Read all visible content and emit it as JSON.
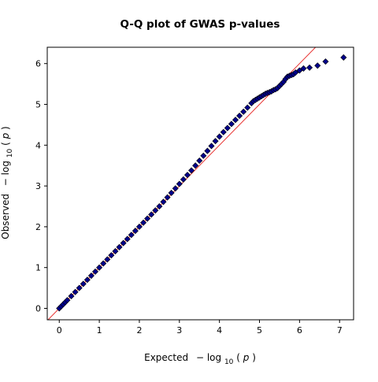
{
  "chart_data": {
    "type": "scatter",
    "title": "Q-Q plot of GWAS p-values",
    "xlabel": {
      "prefix": "Expected",
      "minus": "−",
      "log_main": "log",
      "log_sub": "10",
      "var_open": "(",
      "var": "p",
      "var_close": ")"
    },
    "ylabel": {
      "prefix": "Observed",
      "minus": "−",
      "log_main": "log",
      "log_sub": "10",
      "var_open": "(",
      "var": "p",
      "var_close": ")"
    },
    "xlim": [
      -0.3,
      7.35
    ],
    "ylim": [
      -0.28,
      6.4
    ],
    "xticks": [
      0,
      1,
      2,
      3,
      4,
      5,
      6,
      7
    ],
    "yticks": [
      0,
      1,
      2,
      3,
      4,
      5,
      6
    ],
    "grid": false,
    "legend": "none",
    "marker": "diamond",
    "colors": {
      "marker_fill": "#00008b",
      "marker_edge": "#000000",
      "reference_line": "#e8312f",
      "axes": "#000000"
    },
    "reference_line": {
      "x": [
        -0.3,
        6.45
      ],
      "y": [
        -0.3,
        6.45
      ]
    },
    "series": [
      {
        "x": [
          0.0,
          0.05,
          0.1,
          0.15,
          0.2,
          0.3,
          0.4,
          0.5,
          0.6,
          0.7,
          0.8,
          0.9,
          1.0,
          1.1,
          1.2,
          1.3,
          1.4,
          1.5,
          1.6,
          1.7,
          1.8,
          1.9,
          2.0,
          2.1,
          2.2,
          2.3,
          2.4,
          2.5,
          2.6,
          2.7,
          2.8,
          2.9,
          3.0,
          3.1,
          3.2,
          3.3,
          3.4,
          3.5,
          3.6,
          3.7,
          3.8,
          3.9,
          4.0,
          4.1,
          4.2,
          4.3,
          4.4,
          4.5,
          4.6,
          4.7,
          4.8,
          4.85,
          4.9,
          4.95,
          5.0,
          5.05,
          5.1,
          5.15,
          5.2,
          5.25,
          5.3,
          5.35,
          5.4,
          5.45,
          5.5,
          5.55,
          5.6,
          5.65,
          5.7,
          5.75,
          5.8,
          5.85,
          5.9,
          6.0,
          6.1,
          6.25,
          6.45,
          6.65,
          7.1
        ],
        "y": [
          0.0,
          0.05,
          0.1,
          0.15,
          0.2,
          0.3,
          0.4,
          0.5,
          0.6,
          0.7,
          0.8,
          0.9,
          1.0,
          1.1,
          1.2,
          1.3,
          1.4,
          1.5,
          1.6,
          1.7,
          1.8,
          1.9,
          2.0,
          2.1,
          2.2,
          2.3,
          2.4,
          2.5,
          2.61,
          2.72,
          2.83,
          2.94,
          3.05,
          3.16,
          3.27,
          3.38,
          3.5,
          3.62,
          3.74,
          3.86,
          3.98,
          4.1,
          4.21,
          4.32,
          4.42,
          4.52,
          4.62,
          4.72,
          4.82,
          4.92,
          5.03,
          5.08,
          5.11,
          5.14,
          5.17,
          5.2,
          5.23,
          5.26,
          5.28,
          5.3,
          5.32,
          5.35,
          5.37,
          5.4,
          5.45,
          5.5,
          5.55,
          5.62,
          5.68,
          5.7,
          5.72,
          5.74,
          5.78,
          5.83,
          5.88,
          5.9,
          5.95,
          6.05,
          6.15
        ]
      }
    ]
  }
}
